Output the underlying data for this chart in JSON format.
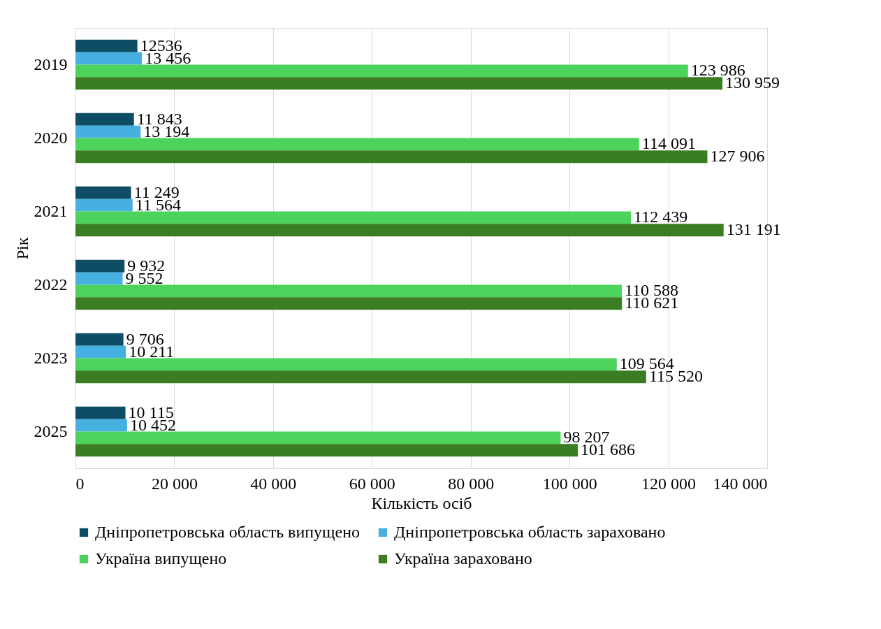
{
  "chart_data": {
    "type": "bar",
    "orientation": "horizontal",
    "xlabel": "Кількість осіб",
    "ylabel": "Рік",
    "categories": [
      "2019",
      "2020",
      "2021",
      "2022",
      "2023",
      "2025"
    ],
    "series": [
      {
        "name": "Дніпропетровська область випущено",
        "color": "#0e4d66",
        "values": [
          12536,
          11843,
          11249,
          9932,
          9706,
          10115
        ],
        "value_labels": [
          "12536",
          "11 843",
          "11 249",
          "9 932",
          "9 706",
          "10 115"
        ]
      },
      {
        "name": "Дніпропетровська область зараховано",
        "color": "#46b1e1",
        "values": [
          13456,
          13194,
          11564,
          9552,
          10211,
          10452
        ],
        "value_labels": [
          "13 456",
          "13 194",
          "11 564",
          "9 552",
          "10 211",
          "10 452"
        ]
      },
      {
        "name": "Україна випущено",
        "color": "#4cd35b",
        "values": [
          123986,
          114091,
          112439,
          110588,
          109564,
          98207
        ],
        "value_labels": [
          "123 986",
          "114 091",
          "112 439",
          "110 588",
          "109 564",
          "98 207"
        ]
      },
      {
        "name": "Україна зараховано",
        "color": "#3b7d23",
        "values": [
          130959,
          127906,
          131191,
          110621,
          115520,
          101686
        ],
        "value_labels": [
          "130 959",
          "127 906",
          "131 191",
          "110 621",
          "115 520",
          "101 686"
        ]
      }
    ],
    "xlim": [
      0,
      140000
    ],
    "xticks": [
      0,
      {
        "value": 20000,
        "label": "20 000"
      },
      {
        "value": 40000,
        "label": "40 000"
      },
      {
        "value": 60000,
        "label": "60 000"
      },
      {
        "value": 80000,
        "label": "80 000"
      },
      {
        "value": 100000,
        "label": "100 000"
      },
      {
        "value": 120000,
        "label": "120 000"
      },
      {
        "value": 140000,
        "label": "140 000"
      }
    ],
    "grid": "x",
    "legend": "bottom"
  }
}
